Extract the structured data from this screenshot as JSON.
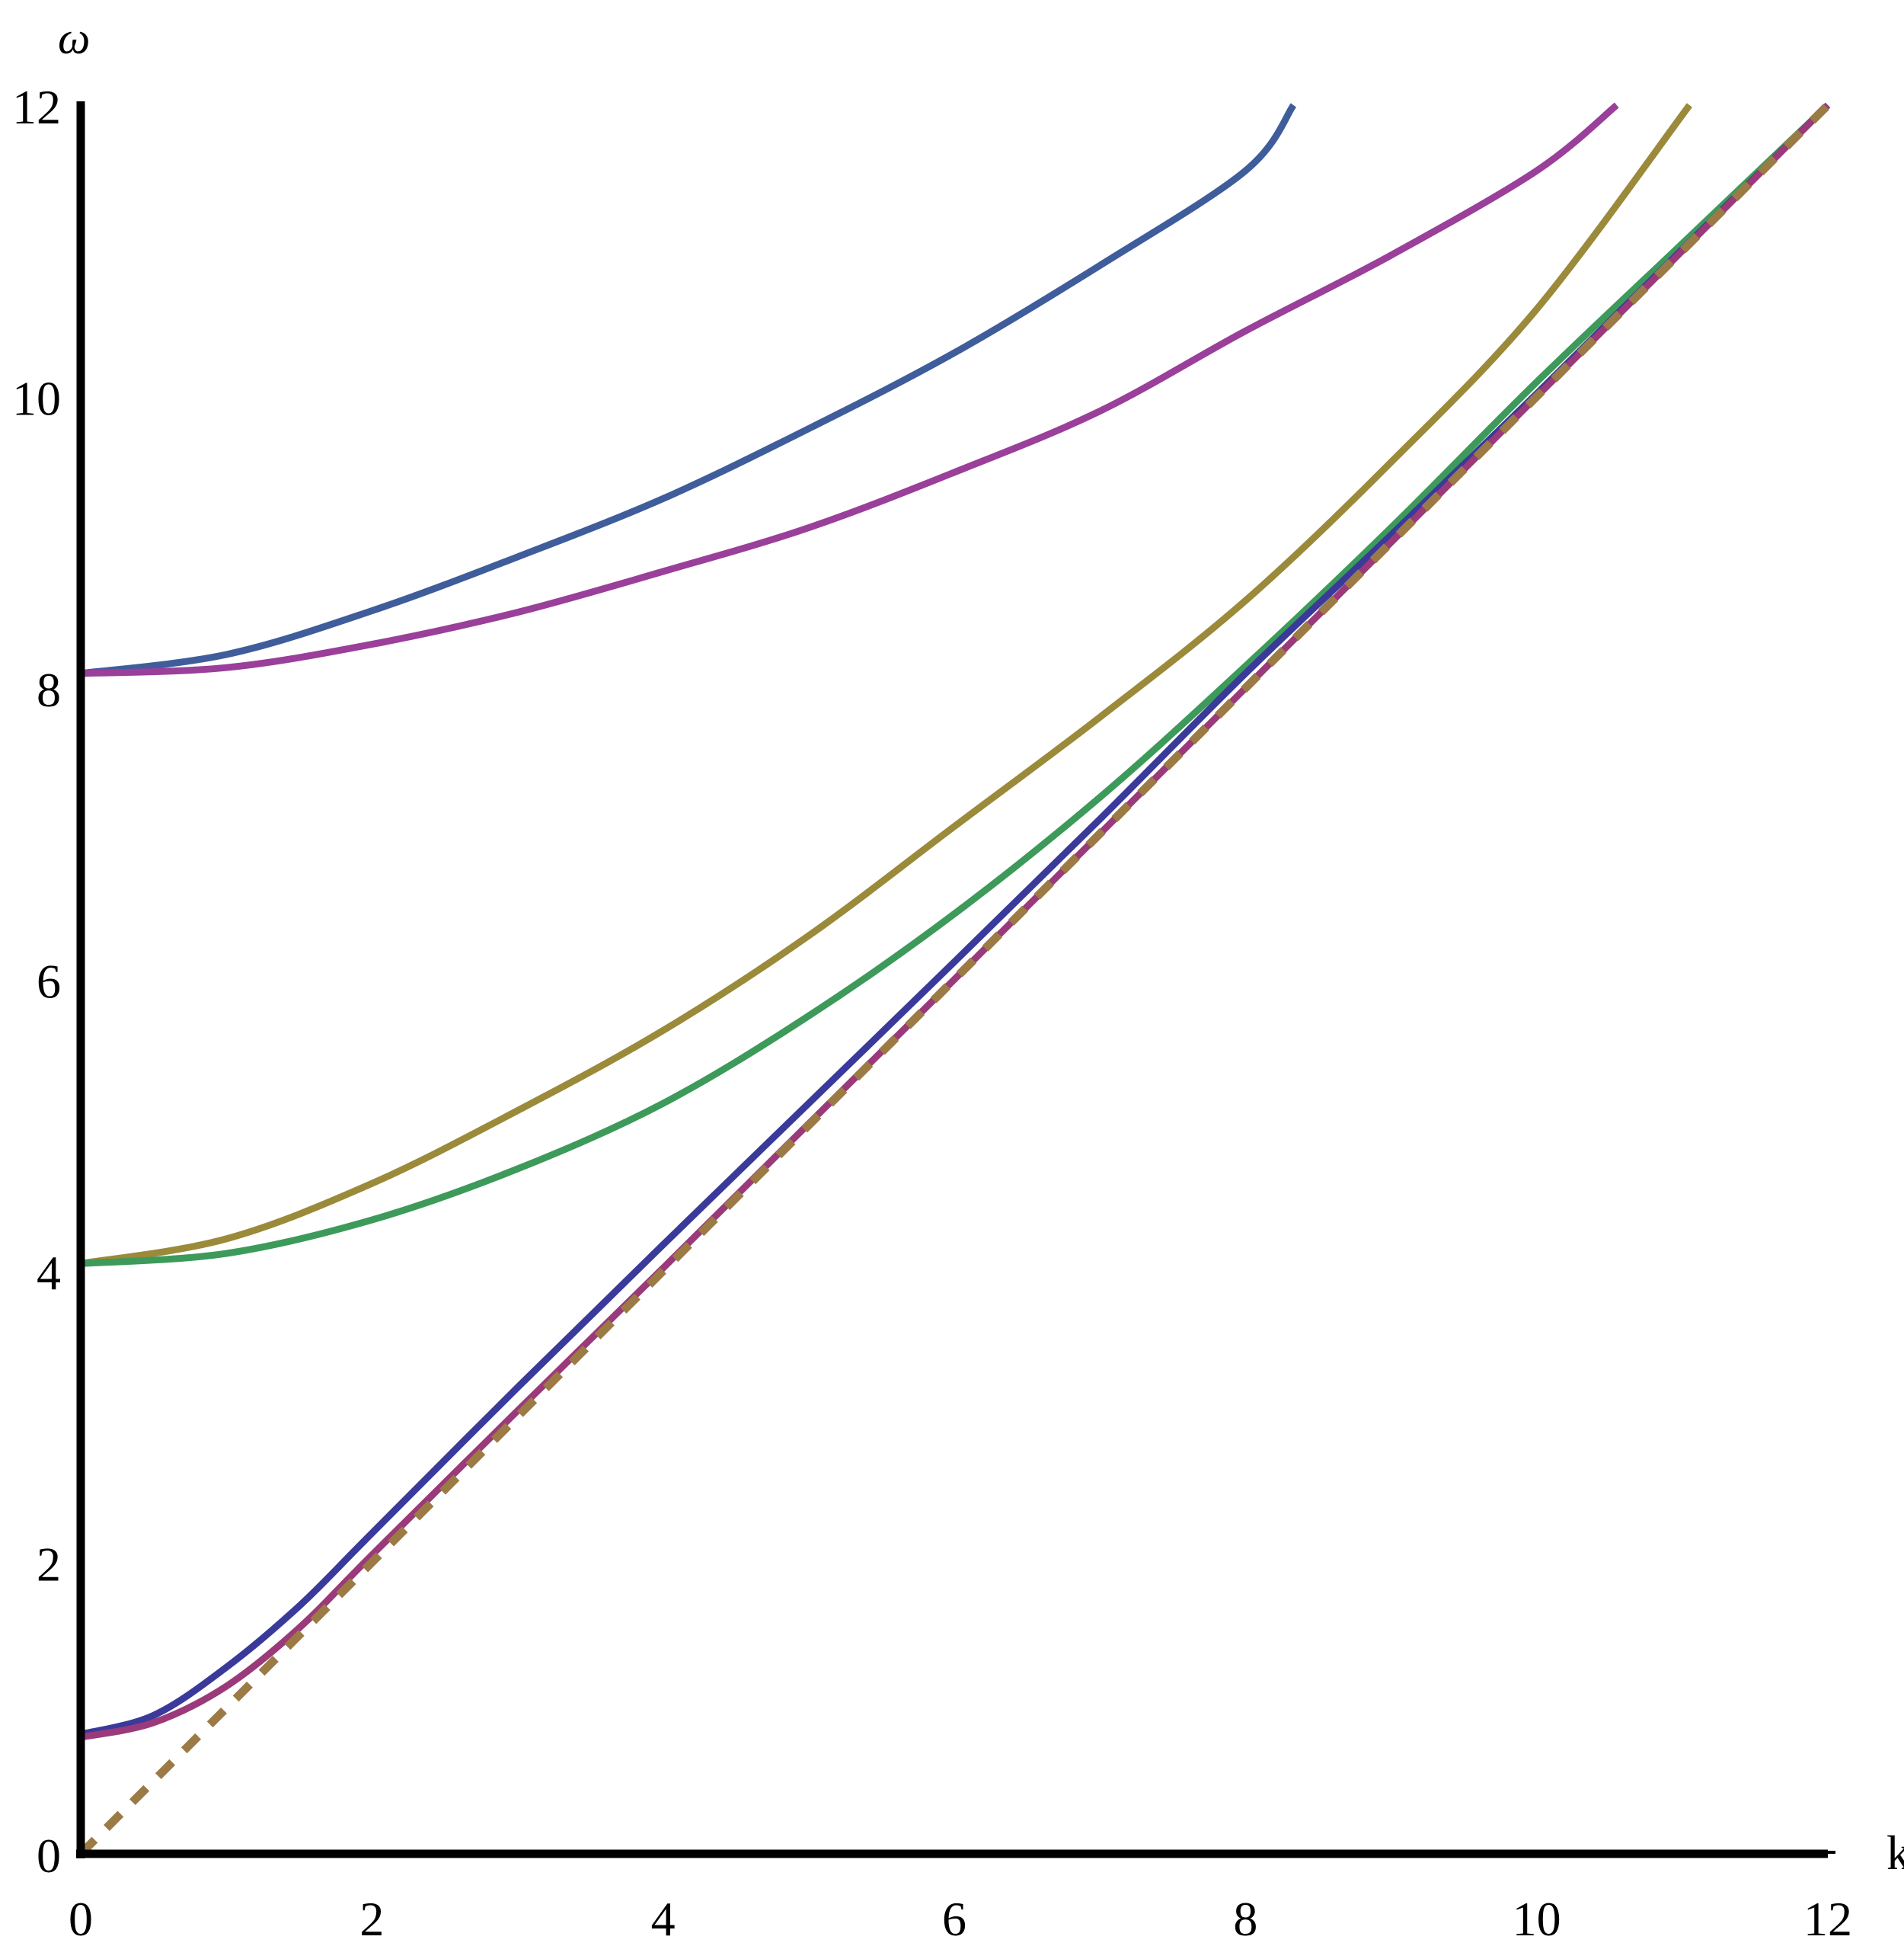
{
  "chart_data": {
    "type": "line",
    "title": "",
    "xlabel": "k",
    "ylabel": "ω",
    "xlim": [
      0,
      12
    ],
    "ylim": [
      0,
      12
    ],
    "x_ticks": [
      "0",
      "2",
      "4",
      "6",
      "8",
      "10",
      "12"
    ],
    "y_ticks": [
      "0",
      "2",
      "4",
      "6",
      "8",
      "10",
      "12"
    ],
    "grid": false,
    "series": [
      {
        "color": "#3F5D9B",
        "style": "solid",
        "x": [
          0,
          1,
          2,
          3,
          4,
          5,
          6,
          7,
          8,
          8.33
        ],
        "y": [
          8.1,
          8.23,
          8.53,
          8.9,
          9.3,
          9.78,
          10.3,
          10.9,
          11.55,
          12
        ]
      },
      {
        "color": "#9A3F9A",
        "style": "solid",
        "x": [
          0,
          1,
          2,
          3,
          4,
          5,
          6,
          7,
          8,
          9,
          10,
          10.55
        ],
        "y": [
          8.1,
          8.14,
          8.3,
          8.52,
          8.8,
          9.1,
          9.48,
          9.9,
          10.45,
          10.97,
          11.55,
          12
        ]
      },
      {
        "color": "#9A8A3A",
        "style": "solid",
        "x": [
          0,
          1,
          2,
          3,
          4,
          5,
          6,
          7,
          8,
          9,
          10,
          11.05
        ],
        "y": [
          4.05,
          4.22,
          4.6,
          5.1,
          5.65,
          6.3,
          7.05,
          7.8,
          8.6,
          9.55,
          10.6,
          12
        ]
      },
      {
        "color": "#3D9A5A",
        "style": "solid",
        "x": [
          0,
          1,
          2,
          3,
          4,
          5,
          6,
          7,
          8,
          9,
          10,
          11,
          12
        ],
        "y": [
          4.05,
          4.12,
          4.35,
          4.7,
          5.15,
          5.75,
          6.45,
          7.25,
          8.15,
          9.1,
          10.1,
          11.05,
          12
        ]
      },
      {
        "color": "#3A3A9A",
        "style": "solid",
        "x": [
          0,
          0.5,
          1,
          1.5,
          2,
          3,
          4,
          5,
          6,
          7,
          8,
          9,
          10,
          11,
          12
        ],
        "y": [
          0.82,
          0.95,
          1.28,
          1.7,
          2.2,
          3.2,
          4.18,
          5.15,
          6.12,
          7.1,
          8.1,
          9.05,
          10.02,
          11.01,
          12
        ]
      },
      {
        "color": "#9A3A7A",
        "style": "solid",
        "x": [
          0,
          0.5,
          1,
          1.5,
          2,
          3,
          4,
          5,
          6,
          7,
          8,
          9,
          10,
          11,
          12
        ],
        "y": [
          0.8,
          0.9,
          1.15,
          1.55,
          2.05,
          3.04,
          4.02,
          5.01,
          6.0,
          7.0,
          8.0,
          9.0,
          10.0,
          11.0,
          12
        ]
      },
      {
        "color": "#9C7A45",
        "style": "dashed",
        "x": [
          0,
          12
        ],
        "y": [
          0,
          12
        ]
      }
    ]
  }
}
